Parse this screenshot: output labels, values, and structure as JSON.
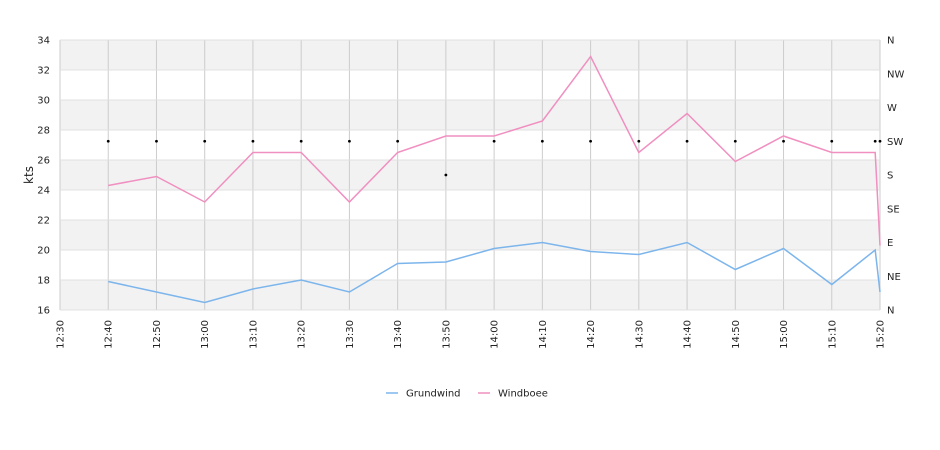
{
  "chart_data": {
    "type": "line",
    "title": "",
    "xlabel": "",
    "ylabel": "kts",
    "y_right_label": "",
    "ylim": [
      16,
      34
    ],
    "y_ticks": [
      16,
      18,
      20,
      22,
      24,
      26,
      28,
      30,
      32,
      34
    ],
    "x_ticks": [
      "12:30",
      "12:40",
      "12:50",
      "13:00",
      "13:10",
      "13:20",
      "13:30",
      "13:40",
      "13:50",
      "14:00",
      "14:10",
      "14:20",
      "14:30",
      "14:40",
      "14:50",
      "15:00",
      "15:10",
      "15:20"
    ],
    "right_axis_ticks": [
      "N",
      "NE",
      "E",
      "SE",
      "S",
      "SW",
      "W",
      "NW",
      "N"
    ],
    "grid": true,
    "legend_position": "bottom-center",
    "colors": {
      "grundwind": "#7cb5ec",
      "windboee": "#f08fc0",
      "direction": "#000000",
      "band": "#f2f2f2",
      "gridline": "#cccccc"
    },
    "series": [
      {
        "name": "Grundwind",
        "x": [
          "12:40",
          "12:50",
          "13:00",
          "13:10",
          "13:20",
          "13:30",
          "13:40",
          "13:50",
          "14:00",
          "14:10",
          "14:20",
          "14:30",
          "14:40",
          "14:50",
          "15:00",
          "15:10",
          "15:19",
          "15:20"
        ],
        "values": [
          17.9,
          17.2,
          16.5,
          17.4,
          18.0,
          17.2,
          19.1,
          19.2,
          20.1,
          20.5,
          19.9,
          19.7,
          20.5,
          18.7,
          20.1,
          17.7,
          20.0,
          17.2
        ]
      },
      {
        "name": "Windboee",
        "x": [
          "12:40",
          "12:50",
          "13:00",
          "13:10",
          "13:20",
          "13:30",
          "13:40",
          "13:50",
          "14:00",
          "14:10",
          "14:20",
          "14:30",
          "14:40",
          "14:50",
          "15:00",
          "15:10",
          "15:19",
          "15:20"
        ],
        "values": [
          24.3,
          24.9,
          23.2,
          26.5,
          26.5,
          23.2,
          26.5,
          27.6,
          27.6,
          28.6,
          32.9,
          26.5,
          29.1,
          25.9,
          27.6,
          26.5,
          26.5,
          20.3
        ]
      },
      {
        "name": "",
        "type": "scatter",
        "axis": "right",
        "x": [
          "12:40",
          "12:50",
          "13:00",
          "13:10",
          "13:20",
          "13:30",
          "13:40",
          "13:50",
          "14:00",
          "14:10",
          "14:20",
          "14:30",
          "14:40",
          "14:50",
          "15:00",
          "15:10",
          "15:19",
          "15:20"
        ],
        "values": [
          "SW",
          "SW",
          "SW",
          "SW",
          "SW",
          "SW",
          "SW",
          "S",
          "SW",
          "SW",
          "SW",
          "SW",
          "SW",
          "SW",
          "SW",
          "SW",
          "SW",
          "SW"
        ]
      }
    ]
  }
}
